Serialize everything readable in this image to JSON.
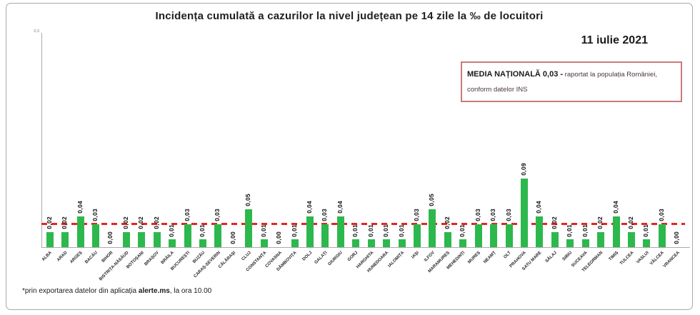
{
  "header": {
    "title": "Incidența cumulată a cazurilor la nivel județean pe 14 zile  la ‰ de locuitori",
    "date": "11 iulie 2021"
  },
  "annotation": {
    "bold": "MEDIA NAȚIONALĂ 0,03 -",
    "line1_rest": " raportat la populația României,",
    "line2": "conform datelor INS"
  },
  "y_axis": {
    "top_tick": "0,3"
  },
  "footnote": {
    "prefix": "*prin exportarea datelor din aplicația ",
    "bold": "alerte.ms",
    "suffix": ", la ora 10.00"
  },
  "chart_data": {
    "type": "bar",
    "title": "Incidența cumulată a cazurilor la nivel județean pe 14 zile la ‰ de locuitori",
    "categories": [
      "ALBA",
      "ARAD",
      "ARGEȘ",
      "BACĂU",
      "BIHOR",
      "BISTRIȚA-NĂSĂUD",
      "BOTOȘANI",
      "BRAȘOV",
      "BRĂILA",
      "BUCUREȘTI",
      "BUZĂU",
      "CARAȘ-SEVERIN",
      "CĂLĂRAȘI",
      "CLUJ",
      "CONSTANȚA",
      "COVASNA",
      "DÂMBOVIȚA",
      "DOLJ",
      "GALAȚI",
      "GIURGIU",
      "GORJ",
      "HARGHITA",
      "HUNEDOARA",
      "IALOMIȚA",
      "IAȘI",
      "ILFOV",
      "MARAMUREȘ",
      "MEHEDINȚI",
      "MUREȘ",
      "NEAMȚ",
      "OLT",
      "PRAHOVA",
      "SATU MARE",
      "SĂLAJ",
      "SIBIU",
      "SUCEAVA",
      "TELEORMAN",
      "TIMIȘ",
      "TULCEA",
      "VASLUI",
      "VÂLCEA",
      "VRANCEA"
    ],
    "values": [
      0.02,
      0.02,
      0.04,
      0.03,
      0.0,
      0.02,
      0.02,
      0.02,
      0.01,
      0.03,
      0.01,
      0.03,
      0.0,
      0.05,
      0.01,
      0.0,
      0.01,
      0.04,
      0.03,
      0.04,
      0.01,
      0.01,
      0.01,
      0.01,
      0.03,
      0.05,
      0.02,
      0.01,
      0.03,
      0.03,
      0.03,
      0.09,
      0.04,
      0.02,
      0.01,
      0.01,
      0.02,
      0.04,
      0.02,
      0.01,
      0.03,
      0.0
    ],
    "value_labels": [
      "0,02",
      "0,02",
      "0,04",
      "0,03",
      "0,00",
      "0,02",
      "0,02",
      "0,02",
      "0,01",
      "0,03",
      "0,01",
      "0,03",
      "0,00",
      "0,05",
      "0,01",
      "0,00",
      "0,01",
      "0,04",
      "0,03",
      "0,04",
      "0,01",
      "0,01",
      "0,01",
      "0,01",
      "0,03",
      "0,05",
      "0,02",
      "0,01",
      "0,03",
      "0,03",
      "0,03",
      "0,09",
      "0,04",
      "0,02",
      "0,01",
      "0,01",
      "0,02",
      "0,04",
      "0,02",
      "0,01",
      "0,03",
      "0,00"
    ],
    "average_line": {
      "label": "MEDIA NAȚIONALĂ",
      "value": 0.03
    },
    "ylim": [
      0,
      0.3
    ],
    "grid": "off",
    "legend": "none",
    "bar_color": "#2db84d",
    "avg_line_color": "#e8251f"
  }
}
